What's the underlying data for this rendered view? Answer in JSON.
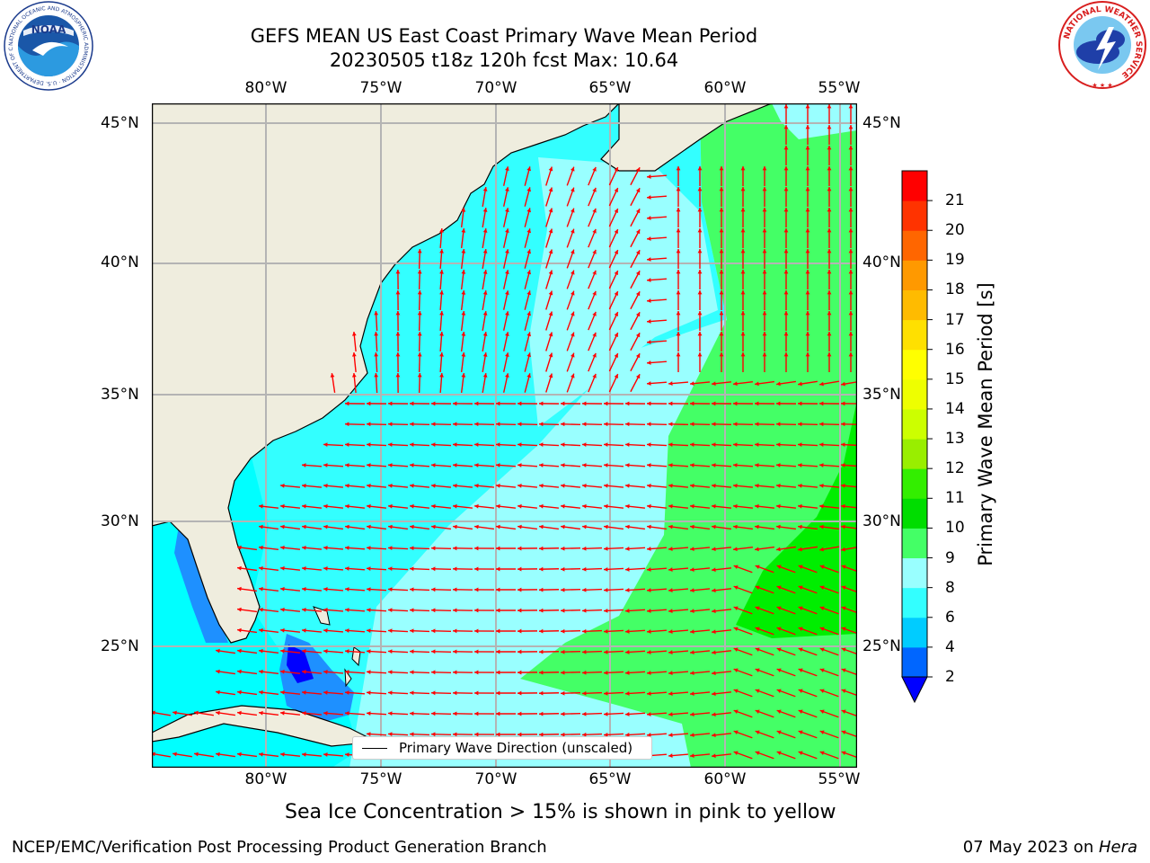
{
  "title": {
    "line1": "GEFS MEAN US East Coast Primary Wave Mean Period",
    "line2": "20230505 t18z 120h fcst   Max: 10.64"
  },
  "map": {
    "longitude_labels": [
      "80°W",
      "75°W",
      "70°W",
      "65°W",
      "60°W",
      "55°W"
    ],
    "latitude_labels": [
      "45°N",
      "40°N",
      "35°N",
      "30°N",
      "25°N"
    ],
    "land_color": "#efedde",
    "grid_color": "#b4b4b4",
    "arrow_color": "#ff0000"
  },
  "legend": {
    "label": "Primary Wave Direction (unscaled)"
  },
  "colorbar": {
    "label": "Primary Wave Mean Period [s]",
    "tick_labels": [
      "2",
      "4",
      "6",
      "8",
      "9",
      "10",
      "11",
      "12",
      "13",
      "14",
      "15",
      "16",
      "17",
      "18",
      "19",
      "20",
      "21"
    ],
    "colors": [
      "#0066ff",
      "#00ccff",
      "#33ffff",
      "#99ffff",
      "#44ff66",
      "#00dd00",
      "#33ee00",
      "#99ee00",
      "#ccff00",
      "#eeff00",
      "#ffff00",
      "#ffe000",
      "#ffbb00",
      "#ff9900",
      "#ff6600",
      "#ff3300",
      "#ff0000"
    ],
    "extend_color": "#0000ff"
  },
  "footer": {
    "ice_note": "Sea Ice Concentration > 15% is shown in pink to yellow",
    "credit": "NCEP/EMC/Verification Post Processing Product Generation Branch",
    "date_prefix": "07 May 2023 on ",
    "machine": "Hera"
  },
  "logos": {
    "noaa_text": "NOAA",
    "noaa_ring_text": "NATIONAL OCEANIC AND ATMOSPHERIC ADMINISTRATION · U.S. DEPARTMENT OF COMMERCE",
    "nws_ring_text": "NATIONAL WEATHER SERVICE"
  }
}
